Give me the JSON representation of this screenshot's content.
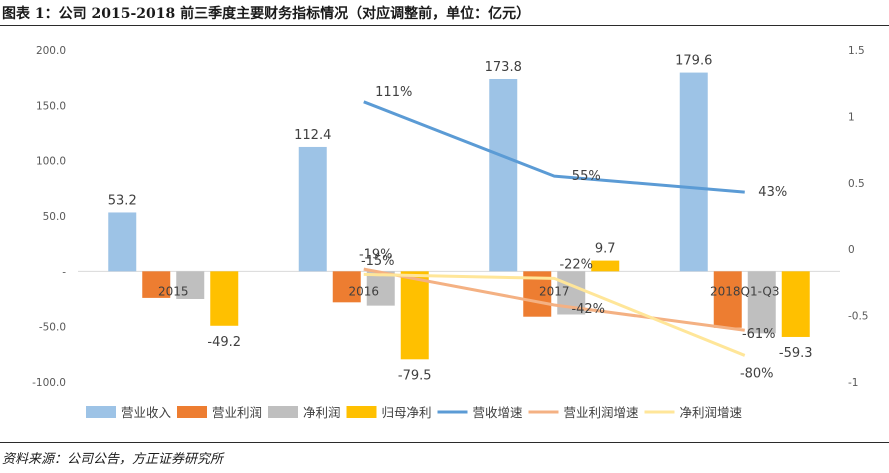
{
  "header": {
    "title": "图表 1：公司 2015-2018 前三季度主要财务指标情况（对应调整前，单位：亿元）"
  },
  "footer": {
    "source": "资料来源：公司公告，方正证券研究所"
  },
  "chart_data": {
    "type": "bar",
    "categories": [
      "2015",
      "2016",
      "2017",
      "2018Q1-Q3"
    ],
    "left_axis": {
      "ylim": [
        -100,
        200
      ],
      "ticks": [
        200,
        150,
        100,
        50,
        0,
        -50,
        -100
      ],
      "tick_labels": [
        "200.0",
        "150.0",
        "100.0",
        "50.0",
        "-",
        "-50.0",
        "-100.0"
      ]
    },
    "right_axis": {
      "ylim": [
        -1,
        1.5
      ],
      "ticks": [
        1.5,
        1,
        0.5,
        0,
        -0.5,
        -1
      ],
      "tick_labels": [
        "1.5",
        "1",
        "0.5",
        "0",
        "-0.5",
        "-1"
      ]
    },
    "series": [
      {
        "name": "营业收入",
        "kind": "bar",
        "axis": "left",
        "color": "#9DC3E6",
        "values": [
          53.2,
          112.4,
          173.8,
          179.6
        ],
        "labels": [
          "53.2",
          "112.4",
          "173.8",
          "179.6"
        ]
      },
      {
        "name": "营业利润",
        "kind": "bar",
        "axis": "left",
        "color": "#ED7D31",
        "values": [
          -24,
          -28,
          -41,
          -51
        ],
        "labels": [
          "",
          "",
          "",
          ""
        ]
      },
      {
        "name": "净利润",
        "kind": "bar",
        "axis": "left",
        "color": "#BFBFBF",
        "values": [
          -25,
          -31,
          -39,
          -56
        ],
        "labels": [
          "",
          "",
          "",
          ""
        ]
      },
      {
        "name": "归母净利",
        "kind": "bar",
        "axis": "left",
        "color": "#FFC000",
        "values": [
          -49.2,
          -79.5,
          9.7,
          -59.3
        ],
        "labels": [
          "-49.2",
          "-79.5",
          "9.7",
          "-59.3"
        ]
      },
      {
        "name": "营收增速",
        "kind": "line",
        "axis": "right",
        "color": "#5B9BD5",
        "values": [
          null,
          1.11,
          0.55,
          0.43
        ],
        "labels": [
          "",
          "111%",
          "55%",
          "43%"
        ]
      },
      {
        "name": "营业利润增速",
        "kind": "line",
        "axis": "right",
        "color": "#F4B183",
        "values": [
          null,
          -0.15,
          -0.42,
          -0.61
        ],
        "labels": [
          "",
          "-15%",
          "-42%",
          "-61%"
        ]
      },
      {
        "name": "净利润增速",
        "kind": "line",
        "axis": "right",
        "color": "#FFE699",
        "values": [
          null,
          -0.19,
          -0.22,
          -0.8
        ],
        "labels": [
          "",
          "-19%",
          "-22%",
          "-80%"
        ]
      }
    ],
    "legend_position": "bottom",
    "grid": false
  }
}
